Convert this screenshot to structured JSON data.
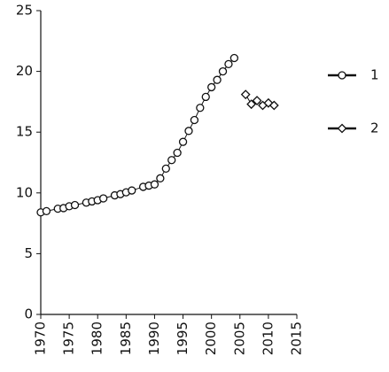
{
  "chart_data": {
    "type": "line",
    "xlim": [
      1970,
      2015
    ],
    "xticks": [
      1970,
      1975,
      1980,
      1985,
      1990,
      1995,
      2000,
      2005,
      2010,
      2015
    ],
    "ylim": [
      0,
      25
    ],
    "yticks": [
      0,
      5,
      10,
      15,
      20,
      25
    ],
    "legend": "right",
    "series": [
      {
        "name": "1",
        "color": "#111111",
        "marker": "circle",
        "x": [
          1970,
          1971,
          1973,
          1974,
          1975,
          1976,
          1978,
          1979,
          1980,
          1981,
          1983,
          1984,
          1985,
          1986,
          1988,
          1989,
          1990,
          1991,
          1992,
          1993,
          1994,
          1995,
          1996,
          1997,
          1998,
          1999,
          2000,
          2001,
          2002,
          2003,
          2004
        ],
        "values": [
          8.4,
          8.5,
          8.7,
          8.75,
          8.9,
          9.0,
          9.2,
          9.3,
          9.4,
          9.55,
          9.8,
          9.9,
          10.05,
          10.2,
          10.5,
          10.6,
          10.7,
          11.2,
          12.0,
          12.7,
          13.3,
          14.2,
          15.1,
          16.0,
          17.0,
          17.9,
          18.7,
          19.3,
          20.0,
          20.6,
          21.1
        ]
      },
      {
        "name": "2",
        "color": "#111111",
        "marker": "diamond",
        "x": [
          2006,
          2007,
          2008,
          2009,
          2010,
          2011
        ],
        "values": [
          18.1,
          17.3,
          17.6,
          17.2,
          17.4,
          17.2
        ]
      }
    ]
  }
}
